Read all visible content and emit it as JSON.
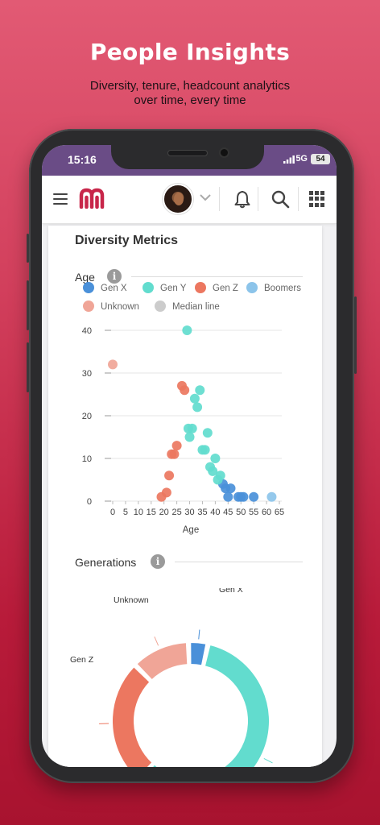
{
  "promo": {
    "headline": "People Insights",
    "subline_1": "Diversity, tenure, headcount analytics",
    "subline_2": "over time, every time"
  },
  "status_bar": {
    "time": "15:16",
    "network": "5G",
    "battery": "54"
  },
  "app_bar": {
    "icons": [
      "menu-icon",
      "app-logo",
      "avatar",
      "chevron-down-icon",
      "bell-icon",
      "search-icon",
      "apps-grid-icon"
    ]
  },
  "card": {
    "title": "Diversity Metrics"
  },
  "age_section": {
    "title": "Age",
    "info": "i",
    "legend": [
      {
        "label": "Gen X",
        "color": "#4a90d9"
      },
      {
        "label": "Gen Y",
        "color": "#62dcce"
      },
      {
        "label": "Gen Z",
        "color": "#ec7760"
      },
      {
        "label": "Boomers",
        "color": "#8cc4ea"
      },
      {
        "label": "Unknown",
        "color": "#f0a597"
      },
      {
        "label": "Median line",
        "color": "#cccccc"
      }
    ]
  },
  "generations_section": {
    "title": "Generations",
    "info": "i"
  },
  "chart_data": [
    {
      "type": "scatter",
      "title": "",
      "xlabel": "Age",
      "ylabel": "",
      "xlim": [
        0,
        65
      ],
      "ylim": [
        0,
        40
      ],
      "x_ticks": [
        "0",
        "5",
        "10",
        "15",
        "20",
        "25",
        "30",
        "35",
        "40",
        "45",
        "50",
        "55",
        "60",
        "65"
      ],
      "y_ticks": [
        "0",
        "10",
        "20",
        "30",
        "40"
      ],
      "grid": "horizontal",
      "series": [
        {
          "name": "Gen X",
          "color": "#4a90d9",
          "points": [
            [
              43,
              4
            ],
            [
              44,
              3
            ],
            [
              45,
              1
            ],
            [
              46,
              3
            ],
            [
              49,
              1
            ],
            [
              50,
              1
            ],
            [
              51,
              1
            ],
            [
              55,
              1
            ]
          ]
        },
        {
          "name": "Gen Y",
          "color": "#62dcce",
          "points": [
            [
              29,
              40
            ],
            [
              29.5,
              17
            ],
            [
              30,
              15
            ],
            [
              31,
              17
            ],
            [
              32,
              24
            ],
            [
              33,
              22
            ],
            [
              34,
              26
            ],
            [
              35,
              12
            ],
            [
              36,
              12
            ],
            [
              37,
              16
            ],
            [
              38,
              8
            ],
            [
              39,
              7
            ],
            [
              40,
              10
            ],
            [
              41,
              5
            ],
            [
              42,
              6
            ]
          ]
        },
        {
          "name": "Gen Z",
          "color": "#ec7760",
          "points": [
            [
              19,
              1
            ],
            [
              21,
              2
            ],
            [
              22,
              6
            ],
            [
              23,
              11
            ],
            [
              24,
              11
            ],
            [
              25,
              13
            ],
            [
              27,
              27
            ],
            [
              28,
              26
            ]
          ]
        },
        {
          "name": "Boomers",
          "color": "#8cc4ea",
          "points": [
            [
              62,
              1
            ]
          ]
        },
        {
          "name": "Unknown",
          "color": "#f0a597",
          "points": [
            [
              0,
              32
            ]
          ]
        }
      ]
    },
    {
      "type": "pie",
      "title": "",
      "donut": true,
      "slices": [
        {
          "label": "Gen X",
          "value": 4,
          "color": "#4a90d9"
        },
        {
          "label": "Gen Y",
          "value": 58,
          "color": "#62dcce"
        },
        {
          "label": "Gen Z",
          "value": 26,
          "color": "#ec7760"
        },
        {
          "label": "Unknown",
          "value": 12,
          "color": "#f0a597"
        }
      ]
    }
  ]
}
